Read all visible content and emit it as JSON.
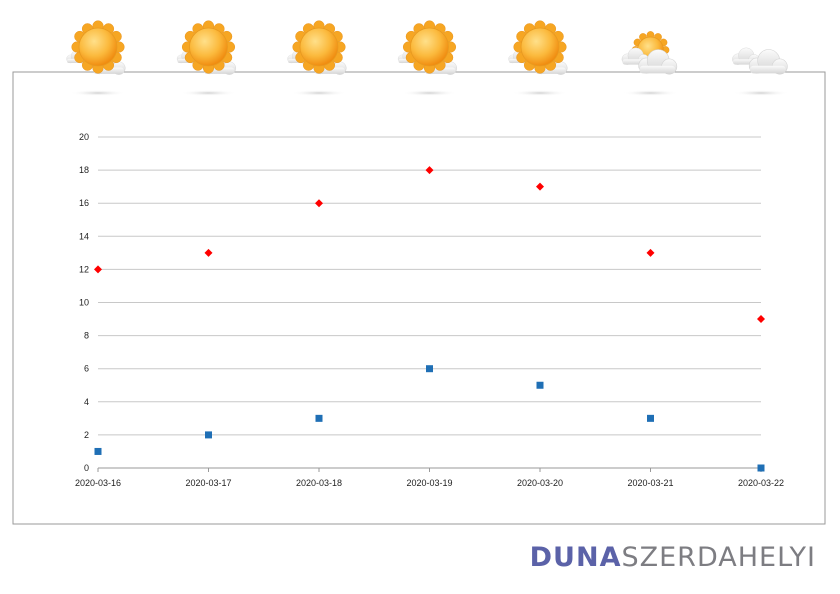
{
  "chart_data": {
    "type": "scatter",
    "categories": [
      "2020-03-16",
      "2020-03-17",
      "2020-03-18",
      "2020-03-19",
      "2020-03-20",
      "2020-03-21",
      "2020-03-22"
    ],
    "series": [
      {
        "name": "",
        "color": "#ff0000",
        "marker": "diamond",
        "values": [
          12,
          13,
          16,
          18,
          17,
          13,
          9
        ]
      },
      {
        "name": "",
        "color": "#1f6fb5",
        "marker": "square",
        "values": [
          1,
          2,
          3,
          6,
          5,
          3,
          0
        ]
      }
    ],
    "title": "",
    "xlabel": "",
    "ylabel": "",
    "ylim": [
      0,
      20
    ],
    "ytick_step": 2,
    "grid": true,
    "legend": "none"
  },
  "weather_icons": [
    "sun-icon",
    "sun-icon",
    "sun-icon",
    "sun-icon",
    "sun-icon",
    "partly-cloudy-icon",
    "cloud-icon"
  ],
  "logo": {
    "part1": "DUNA",
    "part2": "SZERDAHELYI"
  },
  "colors": {
    "sun": "#f9b233",
    "cloud": "#e4e4e4",
    "frame": "#9a9a9a",
    "grid": "#c8c8c8",
    "logo_accent": "#5b62a8"
  }
}
